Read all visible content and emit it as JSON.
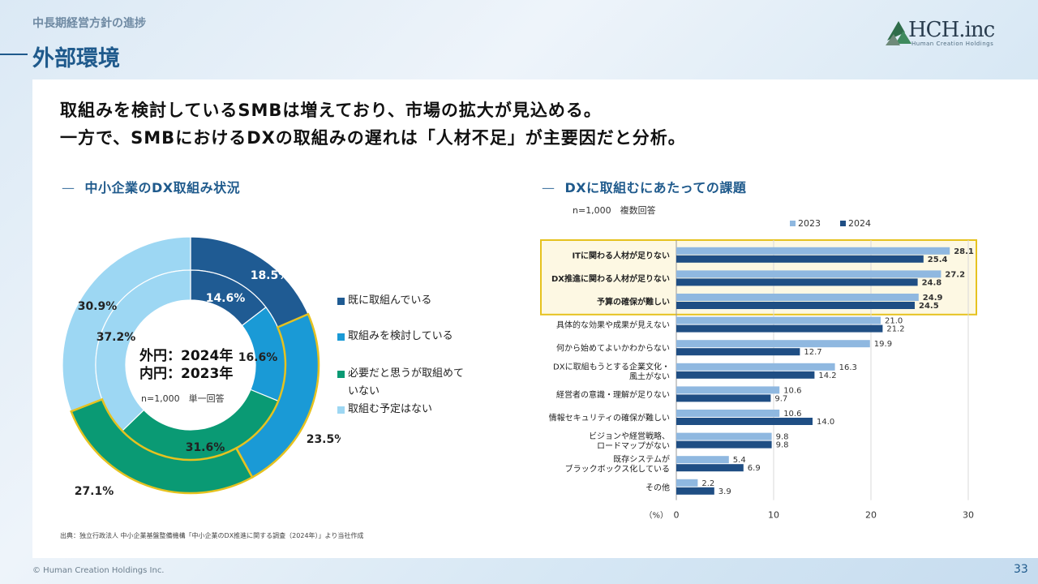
{
  "header": {
    "section_label": "中長期経営方針の進捗",
    "title": "外部環境",
    "logo_text": "HCH.inc",
    "logo_sub": "Human Creation Holdings"
  },
  "headline": {
    "line1": "取組みを検討しているSMBは増えており、市場の拡大が見込める。",
    "line2": "一方で、SMBにおけるDXの取組みの遅れは「人材不足」が主要因だと分析。"
  },
  "donut": {
    "heading": "中小企業のDX取組み状況",
    "center_line1": "外円：2024年",
    "center_line2": "内円：2023年",
    "center_note": "n=1,000　単一回答",
    "legend": [
      {
        "label": "既に取組んでいる",
        "color": "#1f5b93"
      },
      {
        "label": "取組みを検討している",
        "color": "#1a9ad6"
      },
      {
        "label": "必要だと思うが取組めていない",
        "color": "#0a9a74"
      },
      {
        "label": "取組む予定はない",
        "color": "#9dd7f3"
      }
    ]
  },
  "bars": {
    "heading": "DXに取組むにあたっての課題",
    "note": "n=1,000　複数回答",
    "unit_label": "（%）"
  },
  "chart_data": [
    {
      "type": "pie",
      "series": [
        {
          "name": "2024年",
          "values": [
            18.5,
            23.5,
            27.1,
            30.9
          ],
          "labels": [
            "18.5%",
            "23.5%",
            "27.1%",
            "30.9%"
          ]
        },
        {
          "name": "2023年",
          "values": [
            14.6,
            16.6,
            31.6,
            37.2
          ],
          "labels": [
            "14.6%",
            "16.6%",
            "31.6%",
            "37.2%"
          ]
        }
      ],
      "categories": [
        "既に取組んでいる",
        "取組みを検討している",
        "必要だと思うが取組めていない",
        "取組む予定はない"
      ]
    },
    {
      "type": "bar",
      "orientation": "horizontal",
      "categories": [
        "ITに関わる人材が足りない",
        "DX推進に関わる人材が足りない",
        "予算の確保が難しい",
        "具体的な効果や成果が見えない",
        "何から始めてよいかわからない",
        "DXに取組もうとする企業文化・\n風土がない",
        "経営者の意識・理解が足りない",
        "情報セキュリティの確保が難しい",
        "ビジョンや経営戦略、\nロードマップがない",
        "既存システムが\nブラックボックス化している",
        "その他"
      ],
      "highlighted": [
        0,
        1,
        2
      ],
      "series": [
        {
          "name": "2023",
          "color": "#8fb8e0",
          "values": [
            28.1,
            27.2,
            24.9,
            21.0,
            19.9,
            16.3,
            10.6,
            10.6,
            9.8,
            5.4,
            2.2
          ]
        },
        {
          "name": "2024",
          "color": "#1f4e84",
          "values": [
            25.4,
            24.8,
            24.5,
            21.2,
            12.7,
            14.2,
            9.7,
            14.0,
            9.8,
            6.9,
            3.9
          ]
        }
      ],
      "value_labels": {
        "2023": [
          "28.1",
          "27.2",
          "24.9",
          "21.0",
          "19.9",
          "16.3",
          "10.6",
          "10.6",
          "9.8",
          "5.4",
          "2.2"
        ],
        "2024": [
          "25.4",
          "24.8",
          "24.5",
          "21.2",
          "12.7",
          "14.2",
          "9.7",
          "14.0",
          "9.8",
          "6.9",
          "3.9"
        ]
      },
      "xlim": [
        0,
        30
      ],
      "xticks": [
        "0",
        "10",
        "20",
        "30"
      ],
      "grid": true,
      "legend": "top"
    }
  ],
  "footer": {
    "source": "出典：独立行政法人 中小企業基盤整備機構「中小企業のDX推進に関する調査（2024年）」より当社作成",
    "copyright": "© Human Creation Holdings Inc.",
    "page": "33"
  }
}
